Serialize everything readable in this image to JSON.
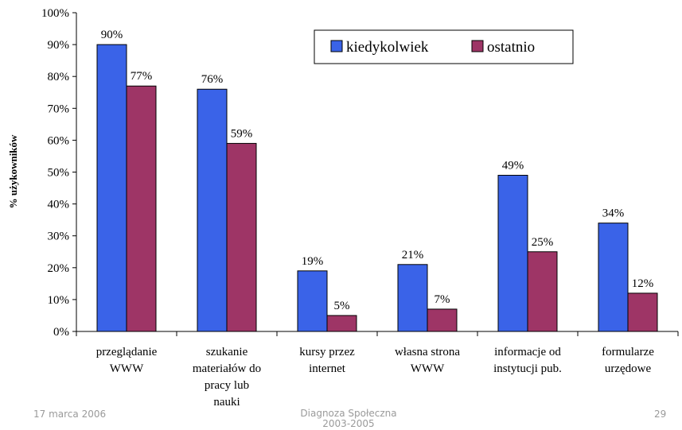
{
  "chart_data": {
    "type": "bar",
    "title": "",
    "ylabel": "% użykowników",
    "xlabel": "",
    "ylim": [
      0,
      100
    ],
    "ytick_labels": [
      "0%",
      "10%",
      "20%",
      "30%",
      "40%",
      "50%",
      "60%",
      "70%",
      "80%",
      "90%",
      "100%"
    ],
    "categories": [
      [
        "przeglądanie",
        "WWW"
      ],
      [
        "szukanie",
        "materiałów do",
        "pracy lub",
        "nauki"
      ],
      [
        "kursy przez",
        "internet"
      ],
      [
        "własna strona",
        "WWW"
      ],
      [
        "informacje od",
        "instytucji pub."
      ],
      [
        "formularze",
        "urzędowe"
      ]
    ],
    "series": [
      {
        "name": "kiedykolwiek",
        "color": "#3a63e8",
        "values": [
          90,
          76,
          19,
          21,
          49,
          34
        ],
        "labels": [
          "90%",
          "76%",
          "19%",
          "21%",
          "49%",
          "34%"
        ]
      },
      {
        "name": "ostatnio",
        "color": "#9e3566",
        "values": [
          77,
          59,
          5,
          7,
          25,
          12
        ],
        "labels": [
          "77%",
          "59%",
          "5%",
          "7%",
          "25%",
          "12%"
        ]
      }
    ],
    "legend_position": "top-right",
    "grid": false
  },
  "footer": {
    "date": "17 marca 2006",
    "source_line1": "Diagnoza Społeczna",
    "source_line2": "2003-2005",
    "page": "29"
  }
}
